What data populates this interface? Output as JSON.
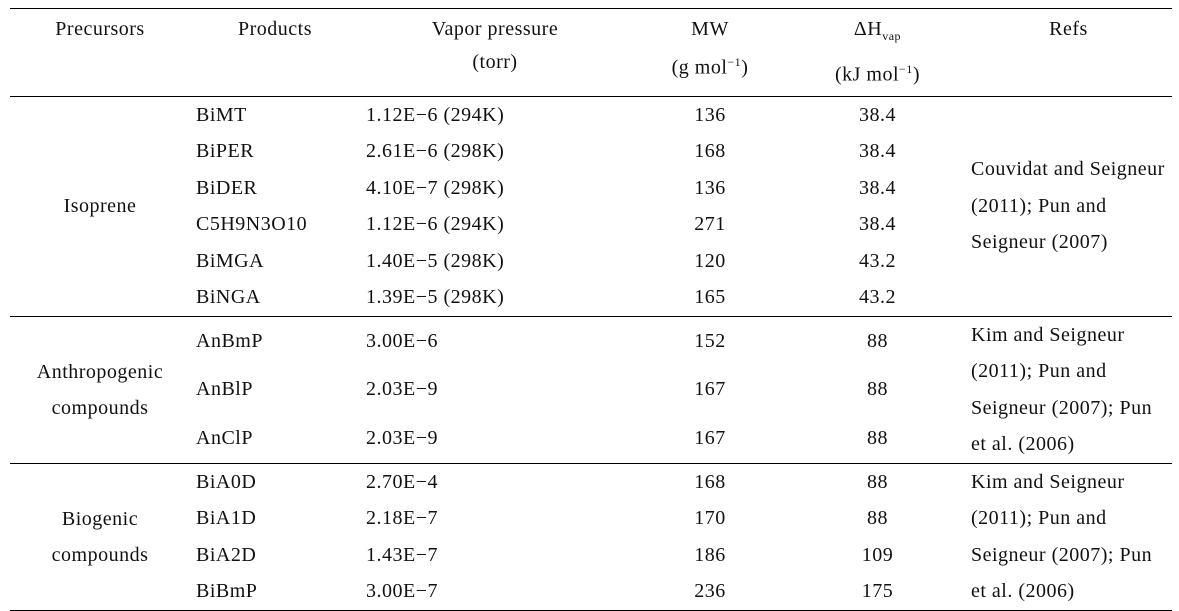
{
  "table": {
    "columns": [
      {
        "lines": [
          [
            {
              "text": "Precursors"
            }
          ]
        ]
      },
      {
        "lines": [
          [
            {
              "text": "Products"
            }
          ]
        ]
      },
      {
        "lines": [
          [
            {
              "text": "Vapor pressure"
            }
          ],
          [
            {
              "text": "(torr)"
            }
          ]
        ]
      },
      {
        "lines": [
          [
            {
              "text": "MW"
            }
          ],
          [
            {
              "text": "(g mol"
            },
            {
              "text": "−1",
              "script": "sup"
            },
            {
              "text": ")"
            }
          ]
        ]
      },
      {
        "lines": [
          [
            {
              "text": "ΔH"
            },
            {
              "text": "vap",
              "script": "sub"
            }
          ],
          [
            {
              "text": "(kJ mol"
            },
            {
              "text": "−1",
              "script": "sup"
            },
            {
              "text": ")"
            }
          ]
        ]
      },
      {
        "lines": [
          [
            {
              "text": "Refs"
            }
          ]
        ]
      }
    ],
    "groups": [
      {
        "precursor": "Isoprene",
        "refs": "Couvidat and Seigneur (2011); Pun and Seigneur (2007)",
        "rows": [
          [
            "BiMT",
            "1.12E−6 (294K)",
            136,
            38.4
          ],
          [
            "BiPER",
            "2.61E−6 (298K)",
            168,
            38.4
          ],
          [
            "BiDER",
            "4.10E−7 (298K)",
            136,
            38.4
          ],
          [
            "C5H9N3O10",
            "1.12E−6 (294K)",
            271,
            38.4
          ],
          [
            "BiMGA",
            "1.40E−5 (298K)",
            120,
            43.2
          ],
          [
            "BiNGA",
            "1.39E−5 (298K)",
            165,
            43.2
          ]
        ]
      },
      {
        "precursor": "Anthropogenic compounds",
        "refs": "Kim and Seigneur (2011); Pun and Seigneur (2007); Pun et al. (2006)",
        "rows": [
          [
            "AnBmP",
            "3.00E−6",
            152,
            88
          ],
          [
            "AnBlP",
            "2.03E−9",
            167,
            88
          ],
          [
            "AnClP",
            "2.03E−9",
            167,
            88
          ]
        ]
      },
      {
        "precursor": "Biogenic compounds",
        "refs": "Kim and Seigneur (2011); Pun and Seigneur (2007); Pun et al. (2006)",
        "rows": [
          [
            "BiA0D",
            "2.70E−4",
            168,
            88
          ],
          [
            "BiA1D",
            "2.18E−7",
            170,
            88
          ],
          [
            "BiA2D",
            "1.43E−7",
            186,
            109
          ],
          [
            "BiBmP",
            "3.00E−7",
            236,
            175
          ]
        ]
      }
    ]
  }
}
